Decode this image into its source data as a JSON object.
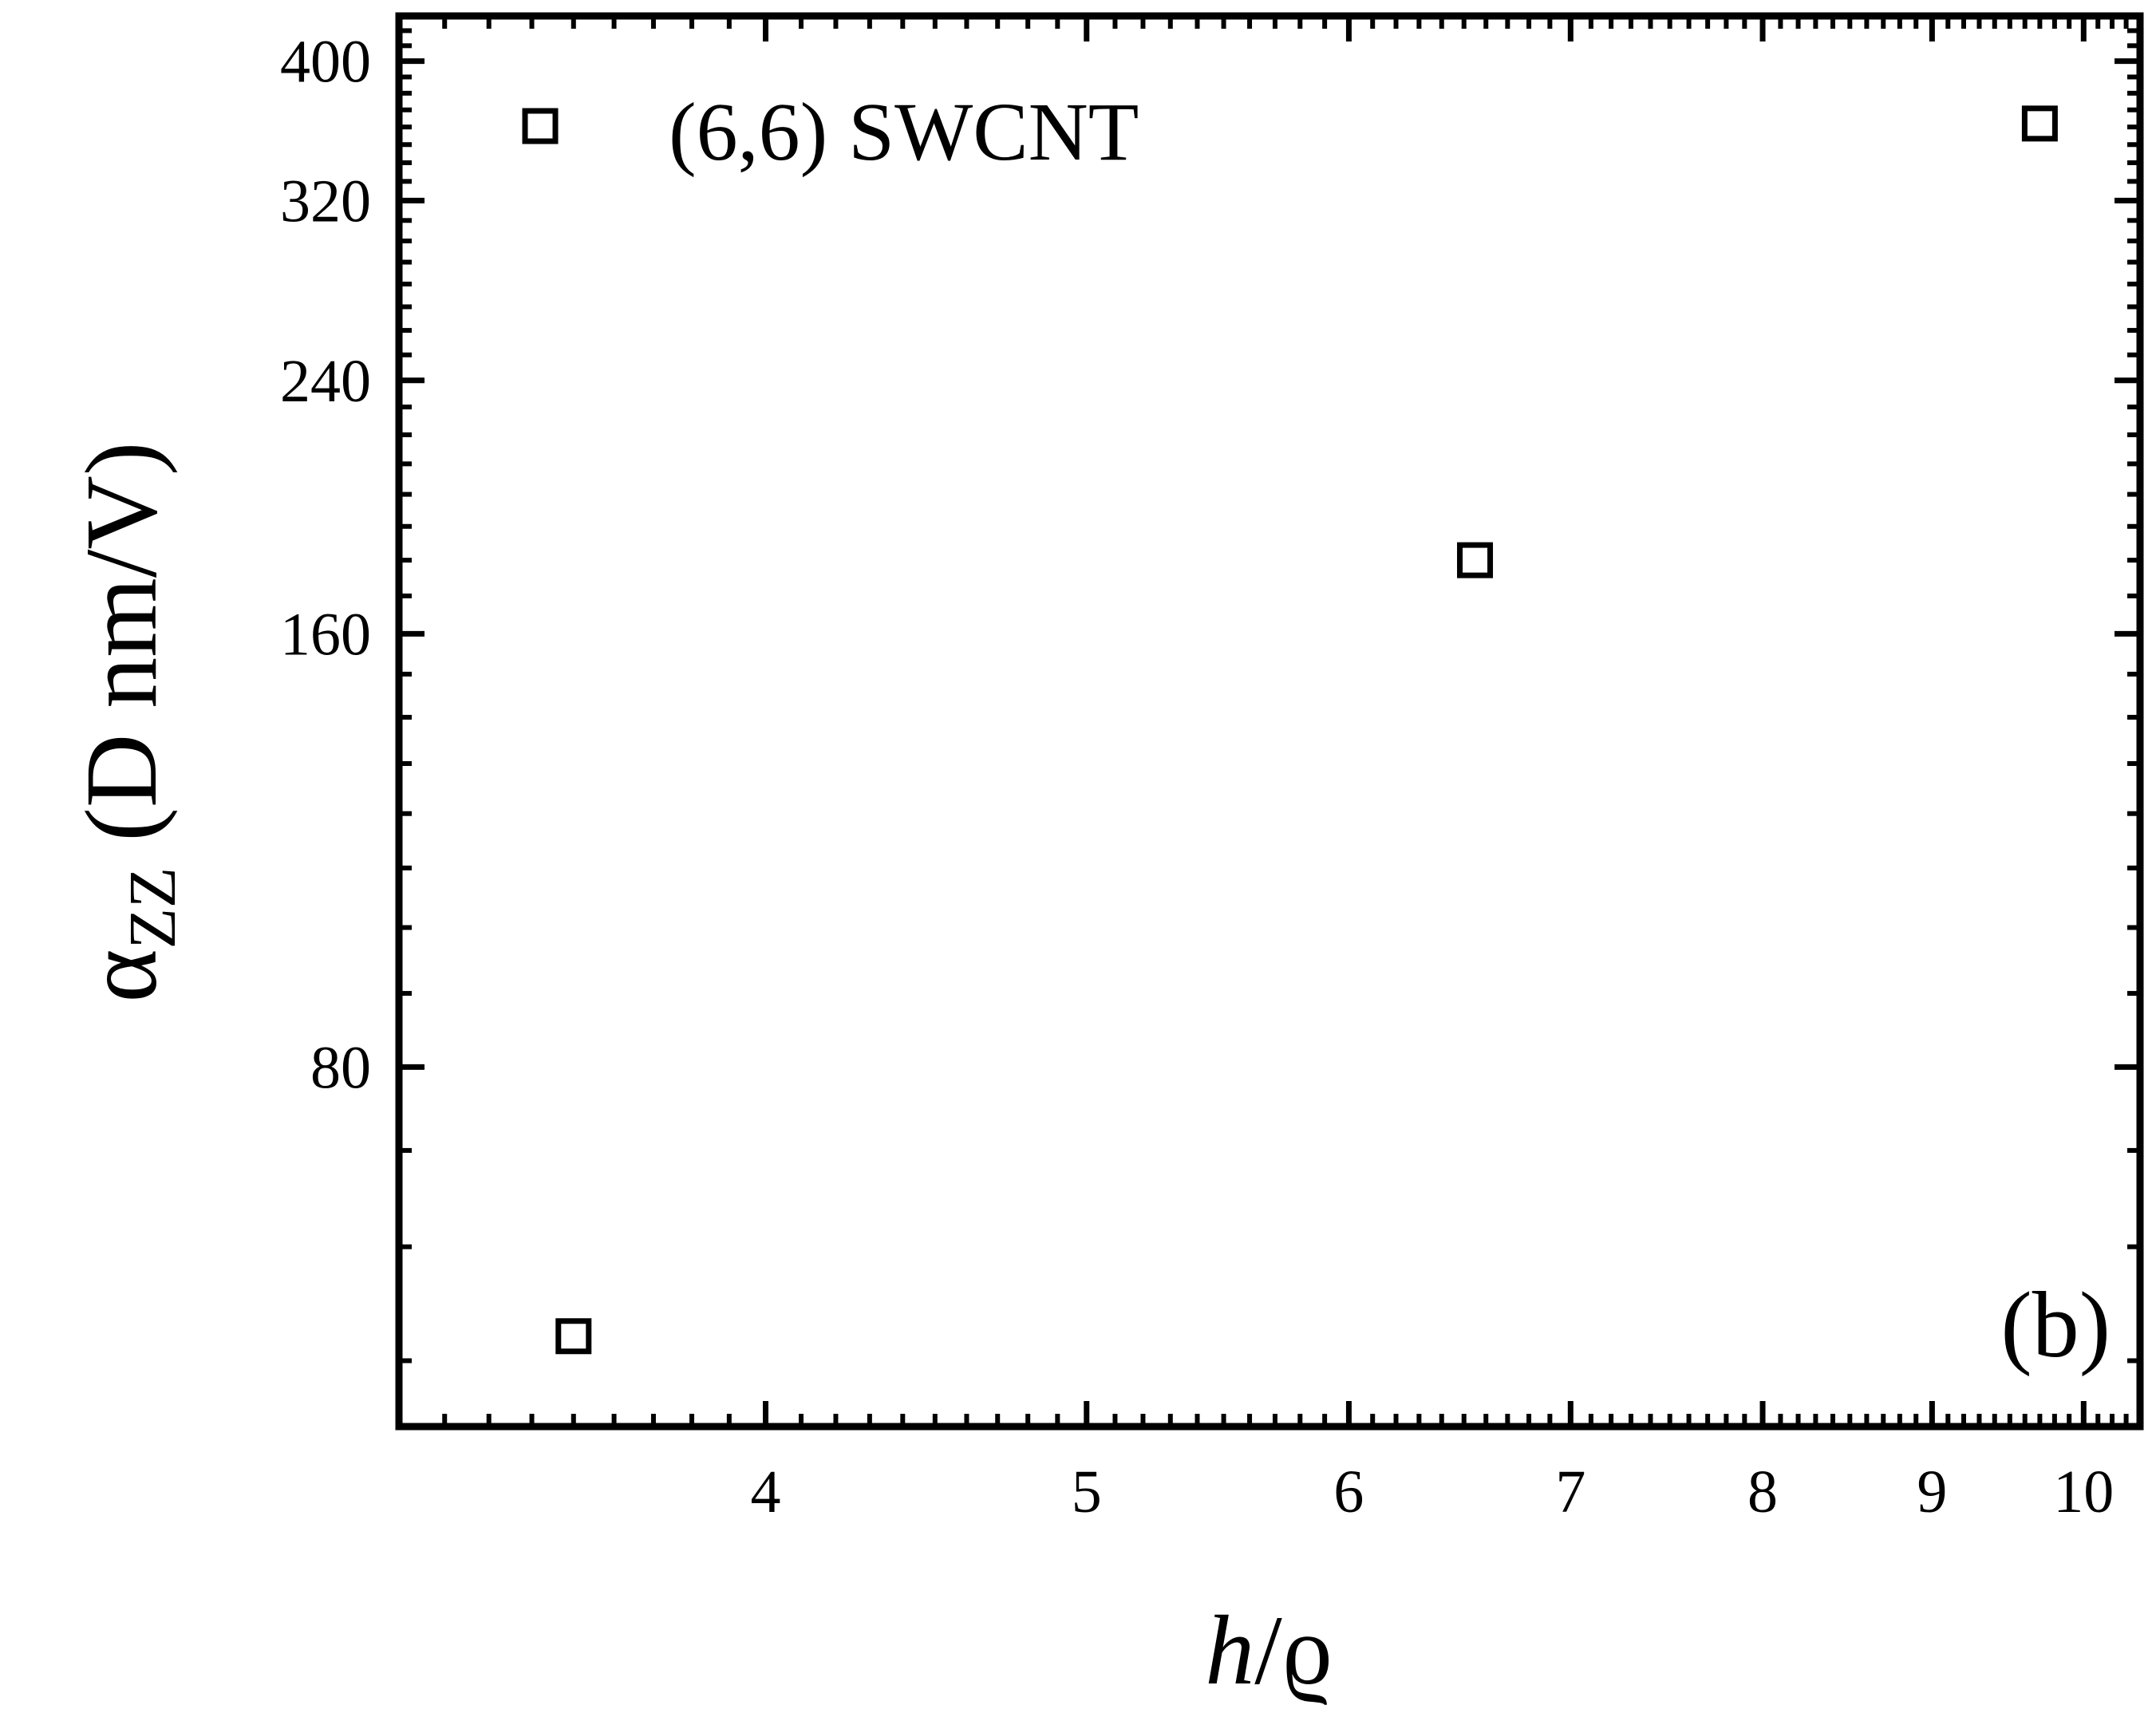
{
  "chart_data": {
    "type": "scatter",
    "xscale": "log",
    "yscale": "log",
    "xlim": [
      3.1,
      10.4
    ],
    "ylim": [
      45,
      430
    ],
    "x_ticks": [
      4,
      5,
      6,
      7,
      8,
      9,
      10
    ],
    "x_tick_labels": [
      "4",
      "5",
      "6",
      "7",
      "8",
      "9",
      "10"
    ],
    "y_ticks": [
      80,
      160,
      240,
      320,
      400
    ],
    "y_tick_labels": [
      "80",
      "160",
      "240",
      "320",
      "400"
    ],
    "xlabel_italic": "h",
    "xlabel_rest": "/ϱ",
    "ylabel_symbol": "α",
    "ylabel_subscript": "ZZ",
    "ylabel_units": " (D nm/V)",
    "panel_label": "(b)",
    "legend": {
      "label": "(6,6) SWCNT",
      "placement": "top-left",
      "marker": "open-square"
    },
    "series": [
      {
        "name": "(6,6) SWCNT",
        "marker": "open-square",
        "color": "#000000",
        "points": [
          {
            "x": 3.5,
            "y": 52
          },
          {
            "x": 6.55,
            "y": 180
          },
          {
            "x": 9.7,
            "y": 362
          }
        ]
      }
    ],
    "grid": false
  }
}
